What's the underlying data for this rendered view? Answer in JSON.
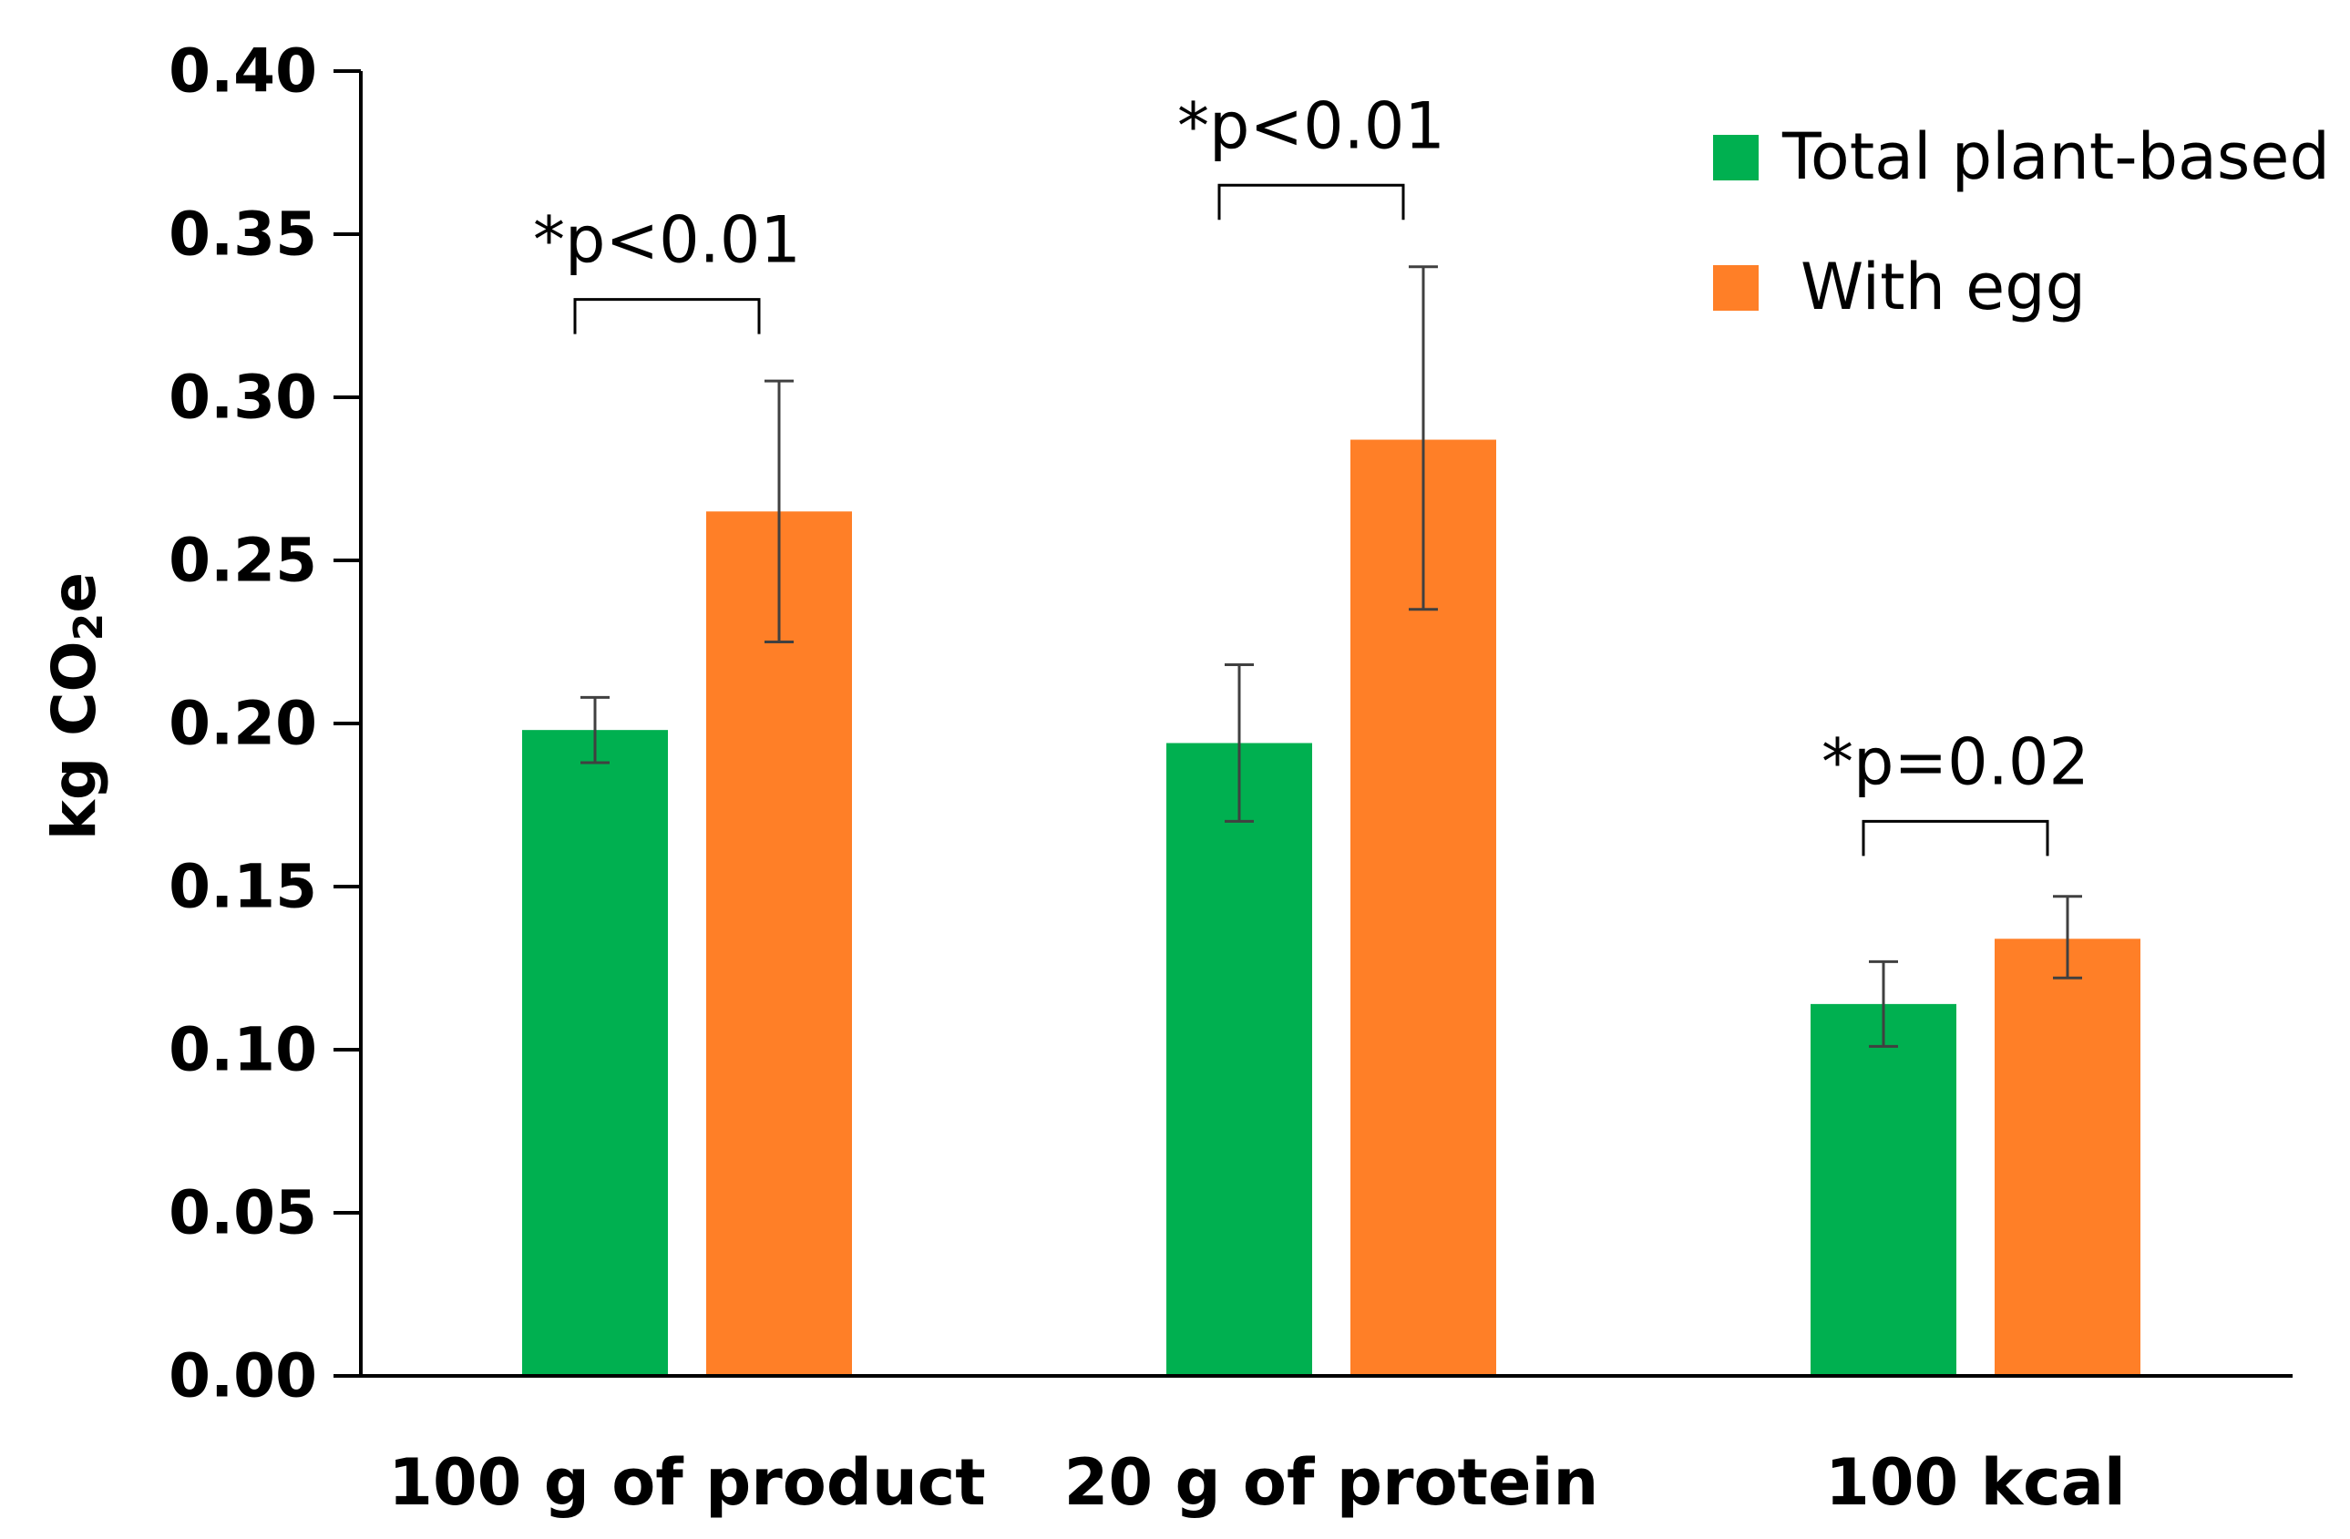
{
  "chart_data": {
    "type": "bar",
    "title": "",
    "xlabel": "",
    "ylabel": {
      "prefix": "kg CO",
      "subscript": "2",
      "suffix": "e"
    },
    "ylim": [
      0,
      0.4
    ],
    "yticks": [
      "0.00",
      "0.05",
      "0.10",
      "0.15",
      "0.20",
      "0.25",
      "0.30",
      "0.35",
      "0.40"
    ],
    "categories": [
      "100 g of product",
      "20 g of protein",
      "100 kcal"
    ],
    "series": [
      {
        "name": "Total plant-based",
        "color": "#00b050",
        "values": [
          0.198,
          0.194,
          0.114
        ],
        "error_low": [
          0.188,
          0.17,
          0.101
        ],
        "error_high": [
          0.208,
          0.218,
          0.127
        ]
      },
      {
        "name": "With egg",
        "color": "#ff7f27",
        "values": [
          0.265,
          0.287,
          0.134
        ],
        "error_low": [
          0.225,
          0.235,
          0.122
        ],
        "error_high": [
          0.305,
          0.34,
          0.147
        ]
      }
    ],
    "annotations": [
      {
        "category_index": 0,
        "text": "*p<0.01",
        "bracket_y": 0.33
      },
      {
        "category_index": 1,
        "text": "*p<0.01",
        "bracket_y": 0.365
      },
      {
        "category_index": 2,
        "text": "*p=0.02",
        "bracket_y": 0.17
      }
    ],
    "legend": {
      "position": "top-right",
      "entries": [
        "Total plant-based",
        "With egg"
      ]
    }
  }
}
